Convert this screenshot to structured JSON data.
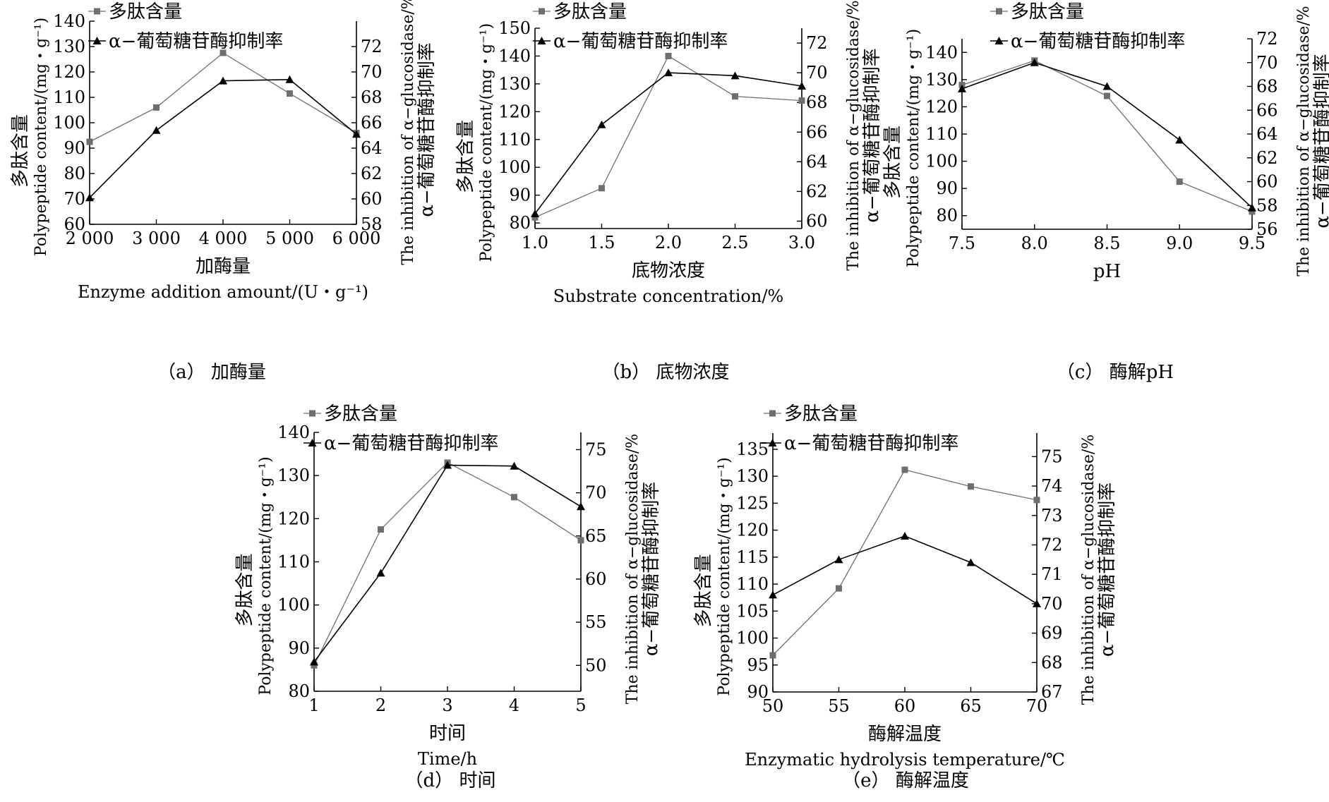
{
  "legend": {
    "series1": "多肽含量",
    "series2": "α−葡萄糖苷酶抑制率"
  },
  "colors": {
    "series1": "#6e6e6e",
    "series2": "#000000"
  },
  "chart_data": [
    {
      "id": "a",
      "type": "line",
      "caption": "（a） 加酶量",
      "xlabel_cn": "加酶量",
      "xlabel_en": "Enzyme addition amount/(U・g⁻¹)",
      "ylabel_left_cn": "多肽含量",
      "ylabel_left_en": "Polypeptide content/(mg・g⁻¹)",
      "ylabel_right_en": "The inhibition of α−glucosidase/%",
      "ylabel_right_cn": "α−葡萄糖苷酶抑制率",
      "x": [
        2000,
        3000,
        4000,
        5000,
        6000
      ],
      "xticks": [
        2000,
        3000,
        4000,
        5000,
        6000
      ],
      "xtick_labels": [
        "2 000",
        "3 000",
        "4 000",
        "5 000",
        "6 000"
      ],
      "xlim": [
        2000,
        6000
      ],
      "ylim_left": [
        60,
        140
      ],
      "yticks_left": [
        60,
        70,
        80,
        90,
        100,
        110,
        120,
        130,
        140
      ],
      "ylim_right": [
        58,
        74
      ],
      "yticks_right": [
        58,
        60,
        62,
        64,
        66,
        68,
        70,
        72
      ],
      "series": [
        {
          "name": "多肽含量",
          "axis": "left",
          "marker": "square",
          "values": [
            92.5,
            106,
            127.5,
            111.5,
            96
          ]
        },
        {
          "name": "α−葡萄糖苷酶抑制率",
          "axis": "right",
          "marker": "triangle",
          "values": [
            60.1,
            65.4,
            69.3,
            69.4,
            65.1
          ]
        }
      ]
    },
    {
      "id": "b",
      "type": "line",
      "caption": "（b） 底物浓度",
      "xlabel_cn": "底物浓度",
      "xlabel_en": "Substrate concentration/%",
      "ylabel_left_cn": "多肽含量",
      "ylabel_left_en": "Polypeptide content/(mg・g⁻¹)",
      "ylabel_right_en": "The inhibition of α−glucosidase/%",
      "ylabel_right_cn": "α−葡萄糖苷酶抑制率",
      "x": [
        1.0,
        1.5,
        2.0,
        2.5,
        3.0
      ],
      "xticks": [
        1.0,
        1.5,
        2.0,
        2.5,
        3.0
      ],
      "xtick_labels": [
        "1.0",
        "1.5",
        "2.0",
        "2.5",
        "3.0"
      ],
      "xlim": [
        1.0,
        3.0
      ],
      "ylim_left": [
        78,
        150
      ],
      "yticks_left": [
        80,
        90,
        100,
        110,
        120,
        130,
        140,
        150
      ],
      "ylim_right": [
        59.5,
        73
      ],
      "yticks_right": [
        60,
        62,
        64,
        66,
        68,
        70,
        72
      ],
      "series": [
        {
          "name": "多肽含量",
          "axis": "left",
          "marker": "square",
          "values": [
            82,
            92.5,
            140,
            125.5,
            124
          ]
        },
        {
          "name": "α−葡萄糖苷酶抑制率",
          "axis": "right",
          "marker": "triangle",
          "values": [
            60.5,
            66.5,
            70,
            69.8,
            69.1
          ]
        }
      ]
    },
    {
      "id": "c",
      "type": "line",
      "caption": "（c） 酶解pH",
      "xlabel_cn": "",
      "xlabel_en": "pH",
      "ylabel_left_cn": "多肽含量",
      "ylabel_left_en": "Polypeptide content/(mg・g⁻¹)",
      "ylabel_right_en": "The inhibition of α−glucosidase/%",
      "ylabel_right_cn": "α−葡萄糖苷酶抑制率",
      "x": [
        7.5,
        8.0,
        8.5,
        9.0,
        9.5
      ],
      "xticks": [
        7.5,
        8.0,
        8.5,
        9.0,
        9.5
      ],
      "xtick_labels": [
        "7.5",
        "8.0",
        "8.5",
        "9.0",
        "9.5"
      ],
      "xlim": [
        7.5,
        9.5
      ],
      "ylim_left": [
        75,
        145
      ],
      "yticks_left": [
        80,
        90,
        100,
        110,
        120,
        130,
        140
      ],
      "ylim_right": [
        56,
        72
      ],
      "yticks_right": [
        56,
        58,
        60,
        62,
        64,
        66,
        68,
        70,
        72
      ],
      "series": [
        {
          "name": "多肽含量",
          "axis": "left",
          "marker": "square",
          "values": [
            128,
            137,
            124,
            92.5,
            81.5
          ]
        },
        {
          "name": "α−葡萄糖苷酶抑制率",
          "axis": "right",
          "marker": "triangle",
          "values": [
            67.8,
            70,
            68,
            63.5,
            57.8
          ]
        }
      ]
    },
    {
      "id": "d",
      "type": "line",
      "caption": "（d） 时间",
      "xlabel_cn": "时间",
      "xlabel_en": "Time/h",
      "ylabel_left_cn": "多肽含量",
      "ylabel_left_en": "Polypeptide content/(mg・g⁻¹)",
      "ylabel_right_en": "The inhibition of α−glucosidase/%",
      "ylabel_right_cn": "α−葡萄糖苷酶抑制率",
      "x": [
        1,
        2,
        3,
        4,
        5
      ],
      "xticks": [
        1,
        2,
        3,
        4,
        5
      ],
      "xtick_labels": [
        "1",
        "2",
        "3",
        "4",
        "5"
      ],
      "xlim": [
        1,
        5
      ],
      "ylim_left": [
        80,
        140
      ],
      "yticks_left": [
        80,
        90,
        100,
        110,
        120,
        130,
        140
      ],
      "ylim_right": [
        47,
        77
      ],
      "yticks_right": [
        50,
        55,
        60,
        65,
        70,
        75
      ],
      "series": [
        {
          "name": "多肽含量",
          "axis": "left",
          "marker": "square",
          "values": [
            86,
            117.5,
            133,
            125,
            115
          ]
        },
        {
          "name": "α−葡萄糖苷酶抑制率",
          "axis": "right",
          "marker": "triangle",
          "values": [
            50.4,
            60.7,
            73.2,
            73.1,
            68.4
          ]
        }
      ]
    },
    {
      "id": "e",
      "type": "line",
      "caption": "（e） 酶解温度",
      "xlabel_cn": "酶解温度",
      "xlabel_en": "Enzymatic hydrolysis temperature/℃",
      "ylabel_left_cn": "多肽含量",
      "ylabel_left_en": "Polypeptide content/(mg・g⁻¹)",
      "ylabel_right_en": "The inhibition of α−glucosidase/%",
      "ylabel_right_cn": "α−葡萄糖苷酶抑制率",
      "x": [
        50,
        55,
        60,
        65,
        70
      ],
      "xticks": [
        50,
        55,
        60,
        65,
        70
      ],
      "xtick_labels": [
        "50",
        "55",
        "60",
        "65",
        "70"
      ],
      "xlim": [
        50,
        70
      ],
      "ylim_left": [
        90,
        138
      ],
      "yticks_left": [
        90,
        95,
        100,
        105,
        110,
        115,
        120,
        125,
        130,
        135
      ],
      "ylim_right": [
        67,
        75.8
      ],
      "yticks_right": [
        67,
        68,
        69,
        70,
        71,
        72,
        73,
        74,
        75
      ],
      "series": [
        {
          "name": "多肽含量",
          "axis": "left",
          "marker": "square",
          "values": [
            96.8,
            109.2,
            131.2,
            128.1,
            125.6
          ]
        },
        {
          "name": "α−葡萄糖苷酶抑制率",
          "axis": "right",
          "marker": "triangle",
          "values": [
            70.3,
            71.5,
            72.3,
            71.4,
            70
          ]
        }
      ]
    }
  ]
}
